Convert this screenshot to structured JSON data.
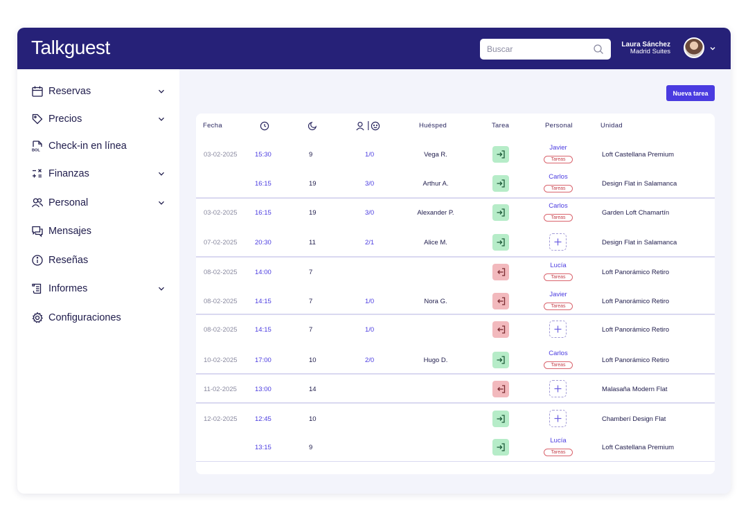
{
  "app": {
    "logo": "Talkguest"
  },
  "search": {
    "placeholder": "Buscar",
    "icon": "search-icon"
  },
  "user": {
    "name": "Laura Sánchez",
    "hotel": "Madrid Suites"
  },
  "sidebar": {
    "items": [
      {
        "label": "Reservas",
        "icon": "calendar-icon",
        "has_submenu": true
      },
      {
        "label": "Precios",
        "icon": "tag-icon",
        "has_submenu": true
      },
      {
        "label": "Check-in en línea",
        "icon": "document-bol-icon",
        "has_submenu": false
      },
      {
        "label": "Finanzas",
        "icon": "calculator-icon",
        "has_submenu": true
      },
      {
        "label": "Personal",
        "icon": "people-icon",
        "has_submenu": true
      },
      {
        "label": "Mensajes",
        "icon": "chat-icon",
        "has_submenu": false
      },
      {
        "label": "Reseñas",
        "icon": "info-icon",
        "has_submenu": false
      },
      {
        "label": "Informes",
        "icon": "report-icon",
        "has_submenu": true
      },
      {
        "label": "Configuraciones",
        "icon": "gear-icon",
        "has_submenu": false
      }
    ]
  },
  "toolbar": {
    "new_task_label": "Nueva tarea"
  },
  "table": {
    "headers": {
      "date": "Fecha",
      "time_icon": "clock-icon",
      "nights_icon": "moon-icon",
      "pax_icons": [
        "adult-icon",
        "child-icon"
      ],
      "guest": "Huésped",
      "task": "Tarea",
      "staff": "Personal",
      "unit": "Unidad"
    },
    "staff_badge_label": "Tareas",
    "rows": [
      {
        "date": "03-02-2025",
        "time": "15:30",
        "nights": "9",
        "pax": "1/0",
        "guest": "Vega R.",
        "task": "checkin",
        "staff": "Javier",
        "unit": "Loft Castellana Premium"
      },
      {
        "date": "",
        "time": "16:15",
        "nights": "19",
        "pax": "3/0",
        "guest": "Arthur A.",
        "task": "checkin",
        "staff": "Carlos",
        "unit": "Design Flat in Salamanca"
      },
      {
        "date": "03-02-2025",
        "time": "16:15",
        "nights": "19",
        "pax": "3/0",
        "guest": "Alexander P.",
        "task": "checkin",
        "staff": "Carlos",
        "unit": "Garden Loft Chamartín"
      },
      {
        "date": "07-02-2025",
        "time": "20:30",
        "nights": "11",
        "pax": "2/1",
        "guest": "Alice M.",
        "task": "checkin",
        "staff": "",
        "unit": "Design Flat in Salamanca"
      },
      {
        "date": "08-02-2025",
        "time": "14:00",
        "nights": "7",
        "pax": "",
        "guest": "",
        "task": "checkout",
        "staff": "Lucía",
        "unit": "Loft Panorámico Retiro"
      },
      {
        "date": "08-02-2025",
        "time": "14:15",
        "nights": "7",
        "pax": "1/0",
        "guest": "Nora G.",
        "task": "checkout",
        "staff": "Javier",
        "unit": "Loft Panorámico Retiro"
      },
      {
        "date": "08-02-2025",
        "time": "14:15",
        "nights": "7",
        "pax": "1/0",
        "guest": "",
        "task": "checkout",
        "staff": "",
        "unit": "Loft Panorámico Retiro"
      },
      {
        "date": "10-02-2025",
        "time": "17:00",
        "nights": "10",
        "pax": "2/0",
        "guest": "Hugo D.",
        "task": "checkin",
        "staff": "Carlos",
        "unit": "Loft Panorámico Retiro"
      },
      {
        "date": "11-02-2025",
        "time": "13:00",
        "nights": "14",
        "pax": "",
        "guest": "",
        "task": "checkout",
        "staff": "",
        "unit": "Malasaña Modern Flat"
      },
      {
        "date": "12-02-2025",
        "time": "12:45",
        "nights": "10",
        "pax": "",
        "guest": "",
        "task": "checkin",
        "staff": "",
        "unit": "Chamberí Design Flat"
      },
      {
        "date": "",
        "time": "13:15",
        "nights": "9",
        "pax": "",
        "guest": "",
        "task": "checkin",
        "staff": "Lucía",
        "unit": "Loft Castellana Premium"
      }
    ]
  },
  "colors": {
    "header_bg": "#262178",
    "accent": "#4a3be0",
    "checkin_bg": "#b6ecc8",
    "checkout_bg": "#f2b9bd",
    "badge": "#c4404a"
  }
}
